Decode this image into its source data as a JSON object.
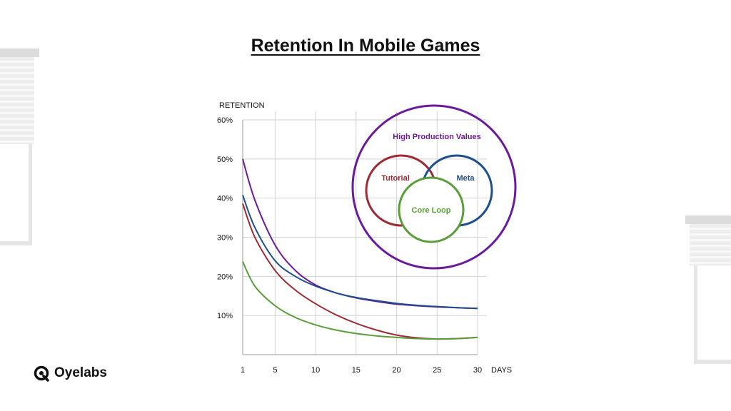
{
  "page": {
    "title": "Retention In Mobile Games",
    "brand": "Oyelabs",
    "brand_icon": "oyelabs-logo-icon"
  },
  "chart_data": {
    "type": "line",
    "title": "Retention In Mobile Games",
    "ylabel": "RETENTION",
    "xlabel": "DAYS",
    "x_ticks": [
      1,
      5,
      10,
      15,
      20,
      25,
      30
    ],
    "y_ticks": [
      "10%",
      "20%",
      "30%",
      "40%",
      "50%",
      "60%"
    ],
    "y_tick_values": [
      10,
      20,
      30,
      40,
      50,
      60
    ],
    "xlim": [
      1,
      30
    ],
    "ylim": [
      0,
      60
    ],
    "grid": true,
    "x": [
      1,
      2.5,
      5,
      7.5,
      10,
      12.5,
      15,
      17.5,
      20,
      22.5,
      25,
      27.5,
      30
    ],
    "series": [
      {
        "color": "#6a1b9a",
        "values": [
          50,
          39.5,
          28,
          21.5,
          17.8,
          15.8,
          14.5,
          13.6,
          12.9,
          12.5,
          12.2,
          12.0,
          11.8
        ]
      },
      {
        "color": "#1f4e8c",
        "values": [
          40.8,
          32.5,
          24,
          20,
          17.5,
          15.8,
          14.6,
          13.8,
          13.1,
          12.6,
          12.3,
          12.0,
          11.8
        ]
      },
      {
        "color": "#9e2a36",
        "values": [
          38.6,
          30,
          21.5,
          16.5,
          13,
          10.2,
          8,
          6.3,
          5,
          4.3,
          4.0,
          4.1,
          4.4
        ]
      },
      {
        "color": "#5a9e3a",
        "values": [
          23.8,
          17.5,
          12.5,
          9.5,
          7.6,
          6.3,
          5.4,
          4.8,
          4.4,
          4.1,
          4.0,
          4.1,
          4.4
        ]
      }
    ]
  },
  "venn": {
    "outer": {
      "label": "High Production Values",
      "color": "#6a1b9a"
    },
    "tutorial": {
      "label": "Tutorial",
      "color": "#9e2a36"
    },
    "meta": {
      "label": "Meta",
      "color": "#1f4e8c"
    },
    "core": {
      "label": "Core Loop",
      "color": "#5a9e3a"
    }
  }
}
